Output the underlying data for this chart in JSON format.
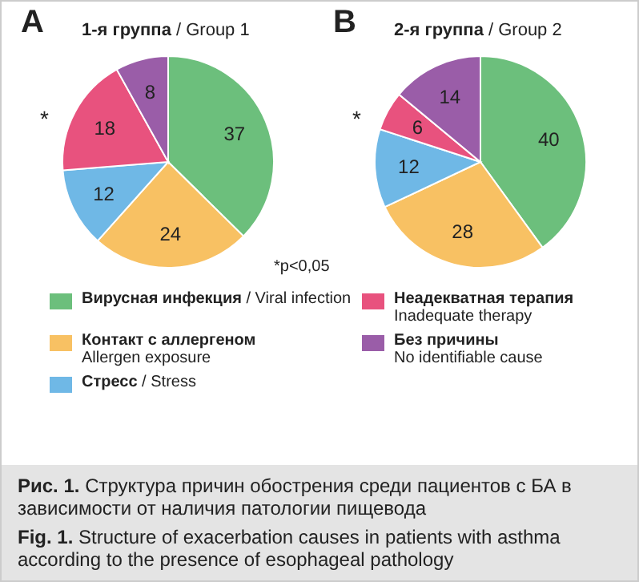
{
  "chart_data": [
    {
      "type": "pie",
      "subtitle": "A",
      "title": "1-я группа / Group 1",
      "categories": [
        "Вирусная инфекция / Viral infection",
        "Контакт с аллергеном\nAllergen exposure",
        "Стресс / Stress",
        "Неадекватная терапия\nInadequate therapy",
        "Без причины\nNo identifiable cause"
      ],
      "values": [
        37,
        24,
        12,
        18,
        8
      ],
      "colors": [
        "#6cbf7c",
        "#f8c163",
        "#6fb8e6",
        "#e8527e",
        "#9a5da8"
      ],
      "data_labels": true,
      "legend": "bottom",
      "annotations": [
        "*",
        "*p<0,05"
      ]
    },
    {
      "type": "pie",
      "subtitle": "B",
      "title": "2-я группа / Group 2",
      "categories": [
        null,
        null,
        null,
        null,
        null
      ],
      "values": [
        40,
        28,
        12,
        6,
        14
      ],
      "colors": [
        "#6cbf7c",
        "#f8c163",
        "#6fb8e6",
        "#e8527e",
        "#9a5da8"
      ],
      "data_labels": true,
      "annotations": [
        "*",
        "Рис. 1. Структура причин обострения среди пациентов с БА в зависимости от наличия патологии пищевода",
        "Fig. 1. Structure of exacerbation causes in patients with asthma according to the presence of esophageal pathology"
      ]
    }
  ]
}
